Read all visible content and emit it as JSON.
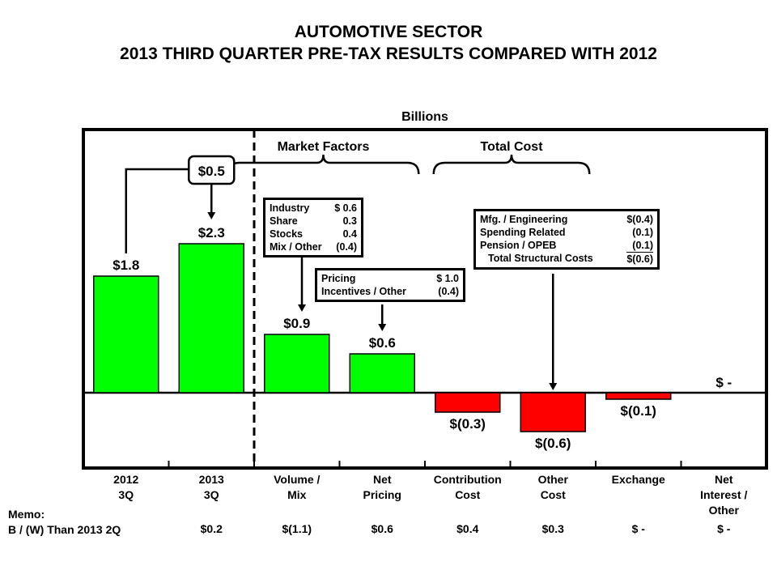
{
  "chart_data": {
    "type": "bar",
    "title": "AUTOMOTIVE SECTOR",
    "subtitle": "2013 THIRD QUARTER PRE-TAX RESULTS COMPARED WITH 2012",
    "unit_label": "Billions",
    "categories": [
      [
        "2012",
        "3Q"
      ],
      [
        "2013",
        "3Q"
      ],
      [
        "Volume /",
        "Mix"
      ],
      [
        "Net",
        "Pricing"
      ],
      [
        "Contribution",
        "Cost"
      ],
      [
        "Other",
        "Cost"
      ],
      [
        "Exchange"
      ],
      [
        "Net",
        "Interest /",
        "Other"
      ]
    ],
    "values": [
      1.8,
      2.3,
      0.9,
      0.6,
      -0.3,
      -0.6,
      -0.1,
      0.0
    ],
    "data_labels": [
      "$1.8",
      "$2.3",
      "$0.9",
      "$0.6",
      "$(0.3)",
      "$(0.6)",
      "$(0.1)",
      "$ -"
    ],
    "ylim": [
      -1.0,
      3.4
    ],
    "group_labels": [
      "Market Factors",
      "Total Cost"
    ],
    "change_callout": "$0.5",
    "colors": {
      "positive": "#00ff00",
      "negative": "#ff0000"
    },
    "annotations": {
      "volume_mix": [
        {
          "label": "Industry",
          "value": "$ 0.6"
        },
        {
          "label": "Share",
          "value": "0.3"
        },
        {
          "label": "Stocks",
          "value": "0.4"
        },
        {
          "label": "Mix / Other",
          "value": "(0.4)"
        }
      ],
      "net_pricing": [
        {
          "label": "Pricing",
          "value": "$ 1.0"
        },
        {
          "label": "Incentives / Other",
          "value": "(0.4)"
        }
      ],
      "other_cost": [
        {
          "label": "Mfg. / Engineering",
          "value": "$(0.4)"
        },
        {
          "label": "Spending Related",
          "value": "(0.1)"
        },
        {
          "label": "Pension / OPEB",
          "value": "(0.1)"
        },
        {
          "label": "Total Structural Costs",
          "value": "$(0.6)"
        }
      ]
    },
    "memo": {
      "label_line1": "Memo:",
      "label_line2": "B / (W) Than 2013 2Q",
      "values": [
        "",
        "$0.2",
        "$(1.1)",
        "$0.6",
        "$0.4",
        "$0.3",
        "$ -",
        "$ -"
      ]
    }
  }
}
